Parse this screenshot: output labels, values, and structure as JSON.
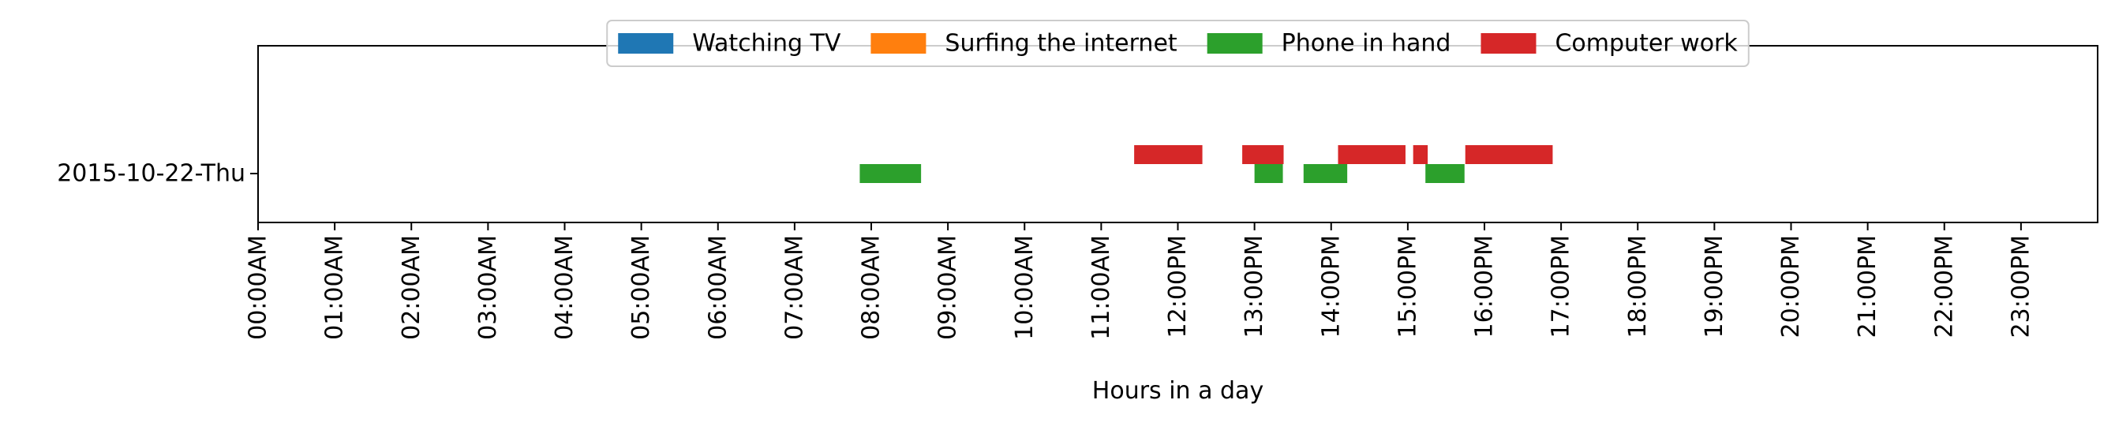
{
  "chart_data": {
    "type": "bar",
    "orientation": "horizontal-timeline",
    "title": "",
    "xlabel": "Hours in a day",
    "ylabel": "",
    "xlim": [
      0,
      24
    ],
    "x_ticks": [
      {
        "value": 0,
        "label": "00:00AM"
      },
      {
        "value": 1,
        "label": "01:00AM"
      },
      {
        "value": 2,
        "label": "02:00AM"
      },
      {
        "value": 3,
        "label": "03:00AM"
      },
      {
        "value": 4,
        "label": "04:00AM"
      },
      {
        "value": 5,
        "label": "05:00AM"
      },
      {
        "value": 6,
        "label": "06:00AM"
      },
      {
        "value": 7,
        "label": "07:00AM"
      },
      {
        "value": 8,
        "label": "08:00AM"
      },
      {
        "value": 9,
        "label": "09:00AM"
      },
      {
        "value": 10,
        "label": "10:00AM"
      },
      {
        "value": 11,
        "label": "11:00AM"
      },
      {
        "value": 12,
        "label": "12:00PM"
      },
      {
        "value": 13,
        "label": "13:00PM"
      },
      {
        "value": 14,
        "label": "14:00PM"
      },
      {
        "value": 15,
        "label": "15:00PM"
      },
      {
        "value": 16,
        "label": "16:00PM"
      },
      {
        "value": 17,
        "label": "17:00PM"
      },
      {
        "value": 18,
        "label": "18:00PM"
      },
      {
        "value": 19,
        "label": "19:00PM"
      },
      {
        "value": 20,
        "label": "20:00PM"
      },
      {
        "value": 21,
        "label": "21:00PM"
      },
      {
        "value": 22,
        "label": "22:00PM"
      },
      {
        "value": 23,
        "label": "23:00PM"
      }
    ],
    "categories": [
      "2015-10-22-Thu"
    ],
    "grid": false,
    "legend_position": "top-center",
    "series": [
      {
        "name": "Watching TV",
        "color": "#1f77b4",
        "offset": "center",
        "intervals": []
      },
      {
        "name": "Surfing the internet",
        "color": "#ff7f0e",
        "offset": "center",
        "intervals": []
      },
      {
        "name": "Phone in hand",
        "color": "#2ca02c",
        "offset": "center",
        "intervals": [
          {
            "category": "2015-10-22-Thu",
            "start": 7.85,
            "end": 8.65
          },
          {
            "category": "2015-10-22-Thu",
            "start": 13.0,
            "end": 13.37
          },
          {
            "category": "2015-10-22-Thu",
            "start": 13.64,
            "end": 14.21
          },
          {
            "category": "2015-10-22-Thu",
            "start": 15.23,
            "end": 15.74
          }
        ]
      },
      {
        "name": "Computer work",
        "color": "#d62728",
        "offset": "above",
        "intervals": [
          {
            "category": "2015-10-22-Thu",
            "start": 11.43,
            "end": 12.32
          },
          {
            "category": "2015-10-22-Thu",
            "start": 12.84,
            "end": 13.38
          },
          {
            "category": "2015-10-22-Thu",
            "start": 14.09,
            "end": 14.97
          },
          {
            "category": "2015-10-22-Thu",
            "start": 15.07,
            "end": 15.26
          },
          {
            "category": "2015-10-22-Thu",
            "start": 15.75,
            "end": 16.89
          }
        ]
      }
    ]
  }
}
